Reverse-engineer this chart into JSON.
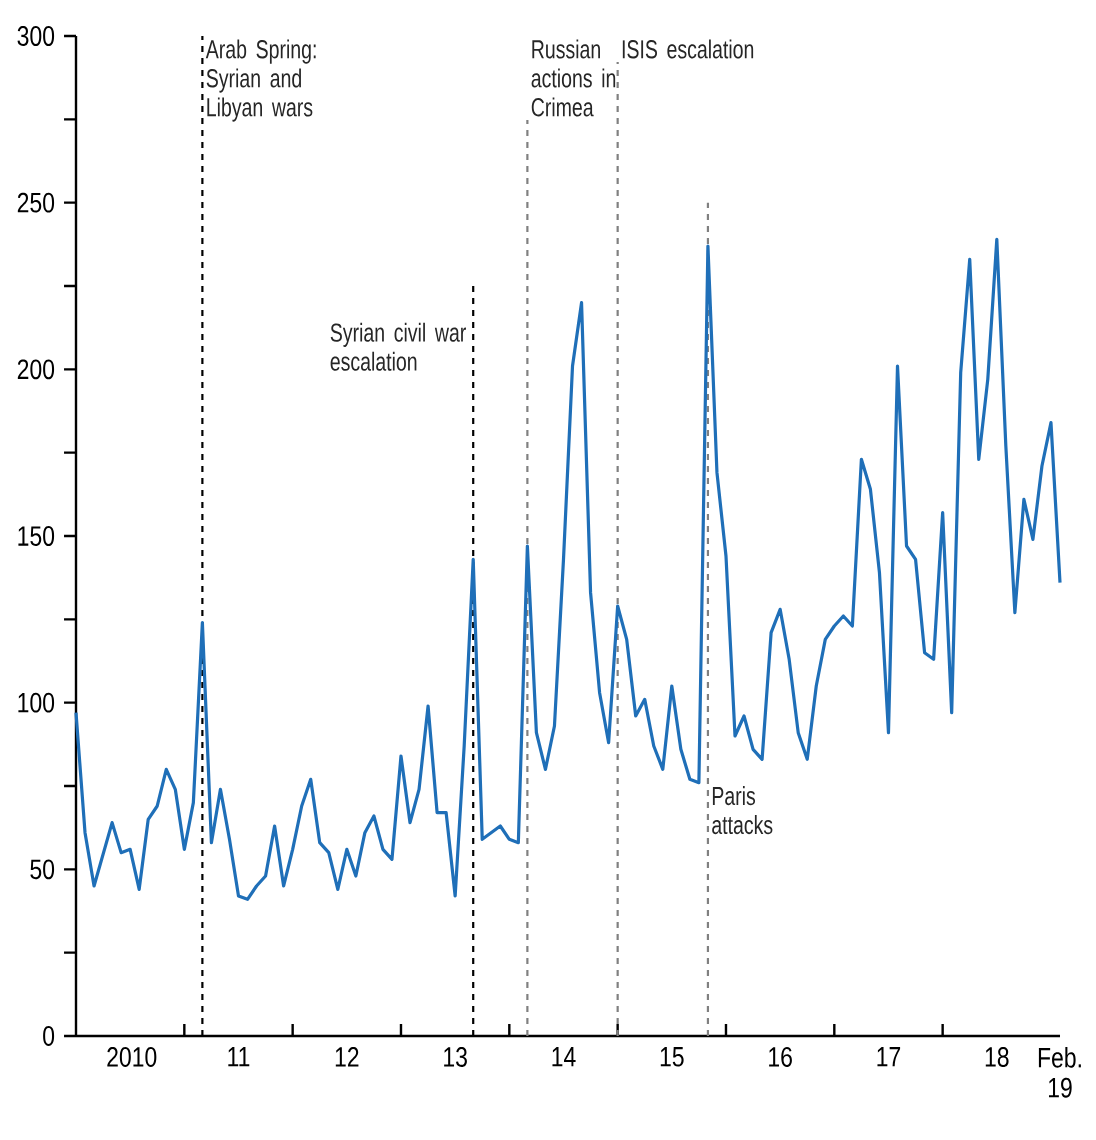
{
  "chart_data": {
    "type": "line",
    "x": [
      "2010-01",
      "2010-02",
      "2010-03",
      "2010-05",
      "2010-06",
      "2010-07",
      "2010-08",
      "2010-09",
      "2010-10",
      "2010-11",
      "2010-12",
      "2011-01",
      "2011-02",
      "2011-03",
      "2011-04",
      "2011-05",
      "2011-06",
      "2011-07",
      "2011-08",
      "2011-09",
      "2011-10",
      "2011-11",
      "2011-12",
      "2012-01",
      "2012-02",
      "2012-03",
      "2012-04",
      "2012-05",
      "2012-06",
      "2012-07",
      "2012-08",
      "2012-09",
      "2012-10",
      "2012-11",
      "2012-12",
      "2013-01",
      "2013-02",
      "2013-03",
      "2013-04",
      "2013-05",
      "2013-06",
      "2013-07",
      "2013-08",
      "2013-09",
      "2013-10",
      "2013-12",
      "2014-01",
      "2014-02",
      "2014-03",
      "2014-04",
      "2014-05",
      "2014-06",
      "2014-07",
      "2014-08",
      "2014-09",
      "2014-10",
      "2014-11",
      "2014-12",
      "2015-01",
      "2015-02",
      "2015-03",
      "2015-04",
      "2015-05",
      "2015-06",
      "2015-07",
      "2015-08",
      "2015-09",
      "2015-10",
      "2015-11",
      "2015-12",
      "2016-01",
      "2016-02",
      "2016-03",
      "2016-04",
      "2016-05",
      "2016-06",
      "2016-07",
      "2016-08",
      "2016-09",
      "2016-10",
      "2016-11",
      "2016-12",
      "2017-01",
      "2017-02",
      "2017-03",
      "2017-04",
      "2017-05",
      "2017-06",
      "2017-07",
      "2017-08",
      "2017-09",
      "2017-10",
      "2017-11",
      "2017-12",
      "2018-01",
      "2018-02",
      "2018-03",
      "2018-04",
      "2018-05",
      "2018-06",
      "2018-07",
      "2018-08",
      "2018-09",
      "2018-10",
      "2018-11",
      "2018-12",
      "2019-01",
      "2019-02"
    ],
    "values": [
      97,
      61,
      45,
      64,
      55,
      56,
      44,
      65,
      69,
      80,
      74,
      56,
      70,
      124,
      58,
      74,
      59,
      42,
      41,
      45,
      48,
      63,
      45,
      56,
      69,
      77,
      58,
      55,
      44,
      56,
      48,
      61,
      66,
      56,
      53,
      84,
      64,
      74,
      99,
      67,
      67,
      42,
      87,
      143,
      59,
      63,
      59,
      58,
      147,
      91,
      80,
      93,
      143,
      201,
      220,
      133,
      103,
      88,
      129,
      119,
      96,
      101,
      87,
      80,
      105,
      86,
      77,
      76,
      237,
      169,
      144,
      90,
      96,
      86,
      83,
      121,
      128,
      113,
      91,
      83,
      105,
      119,
      123,
      126,
      123,
      173,
      164,
      139,
      91,
      201,
      147,
      143,
      115,
      113,
      157,
      97,
      199,
      233,
      173,
      197,
      239,
      177,
      127,
      161,
      149,
      171,
      184,
      136
    ],
    "color": "#1f6fb8",
    "xlim": [
      "2010-01",
      "2019-02"
    ],
    "xticks": [
      {
        "value": "2010-07",
        "label": "2010"
      },
      {
        "value": "2011-07",
        "label": "11"
      },
      {
        "value": "2012-07",
        "label": "12"
      },
      {
        "value": "2013-07",
        "label": "13"
      },
      {
        "value": "2014-07",
        "label": "14"
      },
      {
        "value": "2015-07",
        "label": "15"
      },
      {
        "value": "2016-07",
        "label": "16"
      },
      {
        "value": "2017-07",
        "label": "17"
      },
      {
        "value": "2018-07",
        "label": "18"
      },
      {
        "value": "2019-02",
        "label": "Feb. 19"
      },
      {
        "value": "2011-01",
        "label": null
      },
      {
        "value": "2012-01",
        "label": null
      },
      {
        "value": "2013-01",
        "label": null
      },
      {
        "value": "2014-01",
        "label": null
      },
      {
        "value": "2015-01",
        "label": null
      },
      {
        "value": "2016-01",
        "label": null
      },
      {
        "value": "2017-01",
        "label": null
      },
      {
        "value": "2018-01",
        "label": null
      }
    ],
    "ylim": [
      0,
      300
    ],
    "yticks": [
      0,
      {
        "value": 25,
        "label": null
      },
      50,
      {
        "value": 75,
        "label": null
      },
      100,
      {
        "value": 125,
        "label": null
      },
      150,
      {
        "value": 175,
        "label": null
      },
      200,
      {
        "value": 225,
        "label": null
      },
      250,
      {
        "value": 275,
        "label": null
      },
      300
    ],
    "ref_lines": [
      {
        "axis": "x",
        "value": "2011-03",
        "label": "Arab Spring: Syrian and Libyan wars",
        "color": "#000000",
        "line_style": "dashed"
      },
      {
        "axis": "x",
        "value": "2013-09",
        "label": "Syrian civil war escalation",
        "color": "#000000",
        "line_style": "dashed"
      },
      {
        "axis": "x",
        "value": "2014-03",
        "label": "Russian actions in Crimea",
        "color": "#808080",
        "line_style": "dashed"
      },
      {
        "axis": "x",
        "value": "2015-01",
        "label": "ISIS escalation",
        "color": "#808080",
        "line_style": "dashed"
      },
      {
        "axis": "x",
        "value": "2015-11",
        "label": "Paris attacks",
        "color": "#808080",
        "line_style": "dashed"
      }
    ],
    "grid": false,
    "marker": "none",
    "line_style": "solid"
  }
}
